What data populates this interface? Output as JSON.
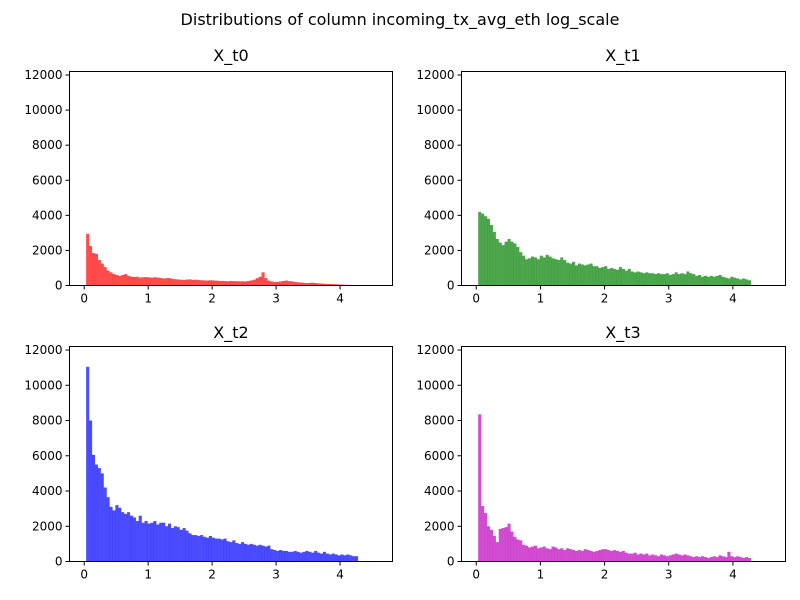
{
  "chart_data": {
    "title": "Distributions of column incoming_tx_avg_eth log_scale",
    "panels": [
      {
        "type": "bar",
        "title": "X_t0",
        "color": "#ff0000",
        "alpha": 0.7,
        "xlim": [
          -0.23,
          4.82
        ],
        "ylim": [
          0,
          12200
        ],
        "xticks": [
          0,
          1,
          2,
          3,
          4
        ],
        "yticks": [
          0,
          2000,
          4000,
          6000,
          8000,
          10000,
          12000
        ],
        "bin_start": 0.03,
        "bin_width": 0.0457,
        "values": [
          2950,
          2250,
          1850,
          1800,
          1450,
          1250,
          1050,
          850,
          750,
          650,
          600,
          550,
          600,
          650,
          550,
          500,
          480,
          500,
          450,
          470,
          480,
          460,
          440,
          470,
          450,
          430,
          400,
          420,
          420,
          380,
          360,
          340,
          330,
          320,
          340,
          350,
          320,
          330,
          310,
          300,
          290,
          280,
          300,
          290,
          280,
          260,
          260,
          250,
          240,
          260,
          250,
          250,
          240,
          240,
          230,
          260,
          290,
          330,
          420,
          500,
          750,
          420,
          280,
          230,
          200,
          210,
          230,
          260,
          280,
          250,
          230,
          200,
          180,
          170,
          150,
          140,
          150,
          160,
          140,
          120,
          110,
          100,
          90,
          85,
          80,
          70,
          60,
          50,
          40,
          30,
          25,
          20,
          15
        ]
      },
      {
        "type": "bar",
        "title": "X_t1",
        "color": "#008000",
        "alpha": 0.7,
        "xlim": [
          -0.23,
          4.82
        ],
        "ylim": [
          0,
          12200
        ],
        "xticks": [
          0,
          1,
          2,
          3,
          4
        ],
        "yticks": [
          0,
          2000,
          4000,
          6000,
          8000,
          10000,
          12000
        ],
        "bin_start": 0.03,
        "bin_width": 0.0457,
        "values": [
          4200,
          4100,
          3950,
          3800,
          3450,
          3050,
          2650,
          2450,
          2300,
          2500,
          2650,
          2500,
          2400,
          2200,
          1900,
          1700,
          1500,
          1550,
          1650,
          1600,
          1500,
          1700,
          1600,
          1750,
          1650,
          1550,
          1500,
          1450,
          1600,
          1450,
          1300,
          1250,
          1350,
          1150,
          1250,
          1200,
          1150,
          1200,
          1250,
          1100,
          1100,
          1000,
          1050,
          1100,
          950,
          1000,
          950,
          900,
          1050,
          950,
          850,
          950,
          800,
          750,
          800,
          750,
          700,
          750,
          700,
          700,
          650,
          700,
          650,
          650,
          700,
          600,
          650,
          750,
          650,
          700,
          650,
          800,
          700,
          650,
          550,
          600,
          500,
          550,
          500,
          550,
          500,
          550,
          600,
          500,
          450,
          400,
          500,
          450,
          400,
          350,
          400,
          350,
          300
        ]
      },
      {
        "type": "bar",
        "title": "X_t2",
        "color": "#0000ff",
        "alpha": 0.7,
        "xlim": [
          -0.23,
          4.82
        ],
        "ylim": [
          0,
          12200
        ],
        "xticks": [
          0,
          1,
          2,
          3,
          4
        ],
        "yticks": [
          0,
          2000,
          4000,
          6000,
          8000,
          10000,
          12000
        ],
        "bin_start": 0.03,
        "bin_width": 0.0457,
        "values": [
          11050,
          8000,
          6050,
          5500,
          5300,
          5000,
          4200,
          3650,
          3100,
          2900,
          3200,
          3050,
          2800,
          2700,
          2800,
          2600,
          2500,
          2300,
          2600,
          2200,
          2300,
          2150,
          2200,
          2300,
          2100,
          2200,
          2200,
          2000,
          2150,
          1900,
          2000,
          1950,
          1800,
          1900,
          1750,
          1600,
          1500,
          1500,
          1450,
          1500,
          1400,
          1350,
          1450,
          1350,
          1300,
          1300,
          1250,
          1300,
          1150,
          1100,
          1200,
          1050,
          1000,
          1100,
          1000,
          950,
          1000,
          950,
          900,
          950,
          900,
          850,
          900,
          700,
          650,
          600,
          650,
          600,
          600,
          550,
          550,
          600,
          550,
          500,
          550,
          600,
          550,
          500,
          600,
          500,
          450,
          550,
          450,
          400,
          450,
          400,
          350,
          400,
          350,
          400,
          350,
          300,
          300
        ]
      },
      {
        "type": "bar",
        "title": "X_t3",
        "color": "#bf00bf",
        "alpha": 0.7,
        "xlim": [
          -0.23,
          4.82
        ],
        "ylim": [
          0,
          12200
        ],
        "xticks": [
          0,
          1,
          2,
          3,
          4
        ],
        "yticks": [
          0,
          2000,
          4000,
          6000,
          8000,
          10000,
          12000
        ],
        "bin_start": 0.03,
        "bin_width": 0.0457,
        "values": [
          8350,
          3150,
          2750,
          2000,
          1800,
          1450,
          1100,
          1850,
          1900,
          1950,
          2150,
          1700,
          1400,
          1250,
          1200,
          950,
          900,
          800,
          850,
          900,
          750,
          800,
          850,
          750,
          700,
          850,
          800,
          700,
          750,
          650,
          750,
          700,
          650,
          600,
          650,
          600,
          700,
          650,
          600,
          550,
          600,
          650,
          700,
          700,
          650,
          600,
          650,
          600,
          550,
          600,
          500,
          450,
          450,
          500,
          400,
          450,
          400,
          450,
          350,
          400,
          350,
          300,
          400,
          350,
          300,
          350,
          400,
          450,
          400,
          350,
          400,
          350,
          300,
          250,
          300,
          250,
          300,
          250,
          200,
          250,
          300,
          250,
          350,
          300,
          250,
          550,
          300,
          250,
          300,
          250,
          200,
          250,
          200
        ]
      }
    ]
  }
}
